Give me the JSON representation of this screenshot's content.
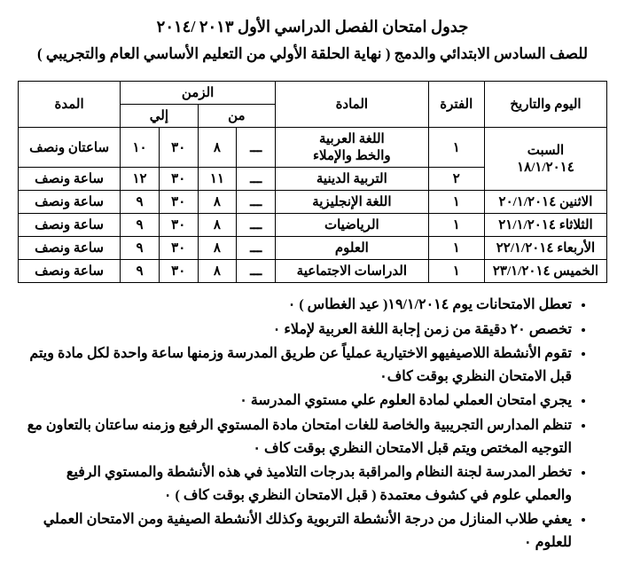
{
  "title": "جدول امتحان الفصل الدراسي الأول ٢٠١٣ /٢٠١٤",
  "subtitle": "للصف السادس  الابتدائي والدمج ( نهاية الحلقة الأولي من التعليم الأساسي العام والتجريبي )",
  "headers": {
    "date": "اليوم والتاريخ",
    "period": "الفترة",
    "subject": "المادة",
    "time": "الزمن",
    "from": "من",
    "to": "إلي",
    "duration": "المدة"
  },
  "rows": [
    {
      "date": "السبت<br>١٨/١/٢٠١٤",
      "period": "١",
      "subject": "اللغة العربية<br>والخط والإملاء",
      "f1": "ـــ",
      "f2": "٨",
      "t1": "٣٠",
      "t2": "١٠",
      "duration": "ساعتان ونصف",
      "rowspanDate": 2
    },
    {
      "date": "",
      "period": "٢",
      "subject": "التربية الدينية",
      "f1": "ـــ",
      "f2": "١١",
      "t1": "٣٠",
      "t2": "١٢",
      "duration": "ساعة ونصف",
      "sharedDate": true
    },
    {
      "date": "الاثنين ٢٠/١/٢٠١٤",
      "period": "١",
      "subject": "اللغة الإنجليزية",
      "f1": "ـــ",
      "f2": "٨",
      "t1": "٣٠",
      "t2": "٩",
      "duration": "ساعة ونصف"
    },
    {
      "date": "الثلاثاء ٢١/١/٢٠١٤",
      "period": "١",
      "subject": "الرياضيات",
      "f1": "ـــ",
      "f2": "٨",
      "t1": "٣٠",
      "t2": "٩",
      "duration": "ساعة ونصف"
    },
    {
      "date": "الأربعاء ٢٢/١/٢٠١٤",
      "period": "١",
      "subject": "العلوم",
      "f1": "ـــ",
      "f2": "٨",
      "t1": "٣٠",
      "t2": "٩",
      "duration": "ساعة ونصف"
    },
    {
      "date": "الخميس ٢٣/١/٢٠١٤",
      "period": "١",
      "subject": "الدراسات الاجتماعية",
      "f1": "ـــ",
      "f2": "٨",
      "t1": "٣٠",
      "t2": "٩",
      "duration": "ساعة ونصف"
    }
  ],
  "notes": [
    "تعطل الامتحانات يوم ١٩/١/٢٠١٤( عيد الغطاس ) ٠",
    "تخصص ٢٠ دقيقة من زمن إجابة اللغة العربية لإملاء ٠",
    "تقوم الأنشطة اللاصيفيهو الاختيارية عملياً عن طريق المدرسة وزمنها ساعة واحدة لكل مادة  ويتم قبل الامتحان النظري بوقت كاف٠",
    "يجري امتحان العملي لمادة العلوم علي مستوي المدرسة ٠",
    "تنظم المدارس التجريبية والخاصة للغات امتحان مادة المستوي الرفيع وزمنه ساعتان بالتعاون مع التوجيه المختص ويتم قبل الامتحان النظري بوقت كاف ٠",
    "تخطر المدرسة لجنة النظام والمراقبة بدرجات التلاميذ في هذه الأنشطة والمستوي الرفيع والعملي علوم في كشوف معتمدة ( قبل الامتحان النظري بوقت كاف ) ٠",
    "يعفي طلاب المنازل من درجة الأنشطة التربوية وكذلك الأنشطة الصيفية ومن الامتحان العملي للعلوم ٠"
  ],
  "style": {
    "background": "#ffffff",
    "text_color": "#000000",
    "border_color": "#000000",
    "title_fontsize": 18,
    "subtitle_fontsize": 17,
    "cell_fontsize": 15,
    "notes_fontsize": 16
  }
}
